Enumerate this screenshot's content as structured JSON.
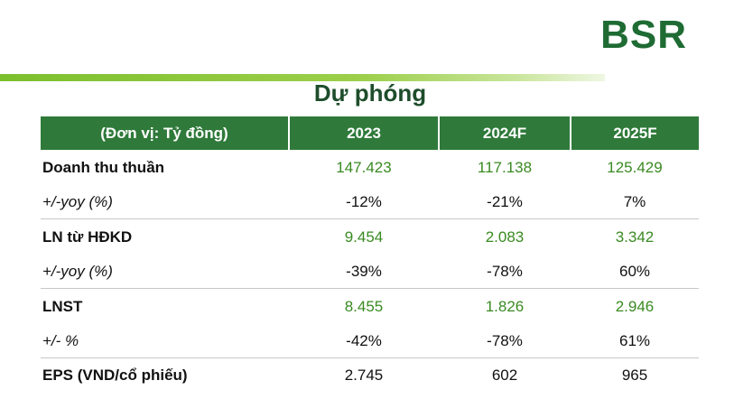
{
  "brand": "BSR",
  "title": "Dự phóng",
  "table": {
    "headers": [
      "(Đơn vị: Tỷ đồng)",
      "2023",
      "2024F",
      "2025F"
    ],
    "rows": [
      {
        "label": "Doanh thu thuần",
        "values": [
          "147.423",
          "117.138",
          "125.429"
        ]
      },
      {
        "label": "+/-yoy (%)",
        "values": [
          "-12%",
          "-21%",
          "7%"
        ]
      },
      {
        "label": "LN từ HĐKD",
        "values": [
          "9.454",
          "2.083",
          "3.342"
        ]
      },
      {
        "label": "+/-yoy (%)",
        "values": [
          "-39%",
          "-78%",
          "60%"
        ]
      },
      {
        "label": "LNST",
        "values": [
          "8.455",
          "1.826",
          "2.946"
        ]
      },
      {
        "label": "+/- %",
        "values": [
          "-42%",
          "-78%",
          "61%"
        ]
      },
      {
        "label": "EPS (VND/cổ phiếu)",
        "values": [
          "2.745",
          "602",
          "965"
        ]
      }
    ]
  },
  "colors": {
    "header_bg": "#2f7a3a",
    "brand": "#1e6b33",
    "value_green": "#3a8a22",
    "accent_bar": "#7cbf2e"
  }
}
